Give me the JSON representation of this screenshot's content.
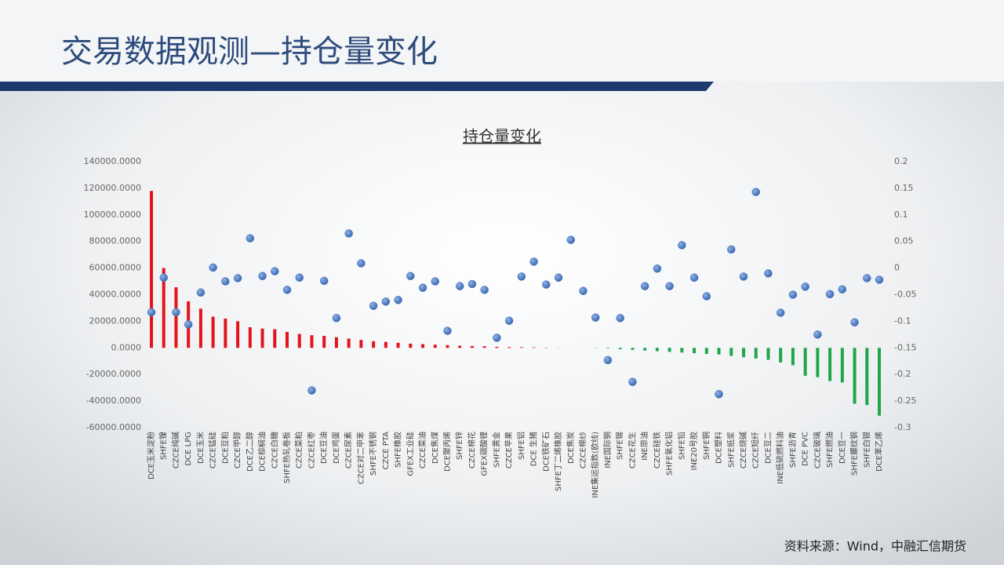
{
  "slide_title": "交易数据观测—持仓量变化",
  "source": "资料来源：Wind，中融汇信期货",
  "chart_data": {
    "type": "combo",
    "title": "持仓量变化",
    "categories": [
      "DCE玉米淀粉",
      "SHFE镍",
      "CZCE纯碱",
      "DCE LPG",
      "DCE玉米",
      "CZCE锰硅",
      "DCE豆粕",
      "CZCE甲醇",
      "DCE乙二醇",
      "DCE棕榈油",
      "CZCE白糖",
      "SHFE热轧卷板",
      "CZCE菜粕",
      "CZCE红枣",
      "DCE豆油",
      "DCE鸡蛋",
      "CZCE尿素",
      "CZCE对二甲苯",
      "SHFE不锈钢",
      "CZCE PTA",
      "SHFE橡胶",
      "GFEX工业硅",
      "CZCE菜油",
      "DCE焦煤",
      "DCE聚丙烯",
      "SHFE锌",
      "CZCE棉花",
      "GFEX碳酸锂",
      "SHFE黄金",
      "CZCE苹果",
      "SHFE铝",
      "DCE 生猪",
      "DCE铁矿石",
      "SHFE丁二烯橡胶",
      "DCE焦炭",
      "CZCE棉纱",
      "INE集运指数(欧线)",
      "INE国际铜",
      "SHFE锡",
      "CZCE花生",
      "INE原油",
      "CZCE硅铁",
      "SHFE氧化铝",
      "SHFE铅",
      "INE20号胶",
      "SHFE铜",
      "DCE塑料",
      "SHFE纸浆",
      "CZCE烧碱",
      "CZCE短纤",
      "DCE豆二",
      "INE低硫燃料油",
      "SHFE沥青",
      "DCE PVC",
      "CZCE玻璃",
      "SHFE燃油",
      "DCE豆一",
      "SHFE螺纹钢",
      "SHFE白银",
      "DCE苯乙烯"
    ],
    "series": [
      {
        "type": "bar",
        "color": "#e3141b",
        "negative_color": "#1fa64a",
        "values": [
          118000,
          60000,
          45500,
          35000,
          29500,
          23500,
          22000,
          20000,
          15500,
          14500,
          14000,
          12000,
          10500,
          9500,
          9000,
          8000,
          7000,
          6000,
          5000,
          4500,
          3800,
          3200,
          2800,
          2400,
          2000,
          1600,
          1400,
          1200,
          800,
          600,
          500,
          400,
          200,
          100,
          50,
          0,
          -200,
          -400,
          -1000,
          -1500,
          -2000,
          -2500,
          -3000,
          -3500,
          -4000,
          -4500,
          -5000,
          -6000,
          -7000,
          -8000,
          -9000,
          -11000,
          -13000,
          -21000,
          -22000,
          -25000,
          -26000,
          -42000,
          -43000,
          -51000
        ]
      },
      {
        "type": "scatter",
        "axis": "y2",
        "color": "#4a78c2",
        "values": [
          -0.083,
          -0.018,
          -0.083,
          -0.106,
          -0.046,
          0.001,
          -0.025,
          -0.019,
          0.056,
          -0.015,
          -0.006,
          -0.041,
          -0.018,
          -0.23,
          -0.024,
          -0.094,
          0.065,
          0.009,
          -0.071,
          -0.063,
          -0.06,
          -0.015,
          -0.037,
          -0.025,
          -0.118,
          -0.034,
          -0.03,
          -0.041,
          -0.131,
          -0.099,
          -0.016,
          0.012,
          -0.031,
          -0.018,
          0.053,
          -0.043,
          -0.093,
          -0.173,
          -0.094,
          -0.214,
          -0.034,
          -0.001,
          -0.034,
          0.043,
          -0.018,
          -0.053,
          -0.237,
          0.035,
          -0.016,
          0.143,
          -0.01,
          -0.084,
          -0.05,
          -0.035,
          -0.125,
          -0.049,
          -0.04,
          -0.102,
          -0.019,
          -0.022
        ]
      }
    ],
    "ylim": [
      -60000,
      140000
    ],
    "yticks": [
      {
        "value": -60000,
        "label": "-60000.0000"
      },
      {
        "value": -40000,
        "label": "-40000.0000"
      },
      {
        "value": -20000,
        "label": "-20000.0000"
      },
      {
        "value": 0,
        "label": "0.0000"
      },
      {
        "value": 20000,
        "label": "20000.0000"
      },
      {
        "value": 40000,
        "label": "40000.0000"
      },
      {
        "value": 60000,
        "label": "60000.0000"
      },
      {
        "value": 80000,
        "label": "80000.0000"
      },
      {
        "value": 100000,
        "label": "100000.0000"
      },
      {
        "value": 120000,
        "label": "120000.0000"
      },
      {
        "value": 140000,
        "label": "140000.0000"
      }
    ],
    "y2lim": [
      -0.3,
      0.2
    ],
    "y2ticks": [
      -0.3,
      -0.25,
      -0.2,
      -0.15,
      -0.1,
      -0.05,
      0,
      0.05,
      0.1,
      0.15,
      0.2
    ]
  }
}
